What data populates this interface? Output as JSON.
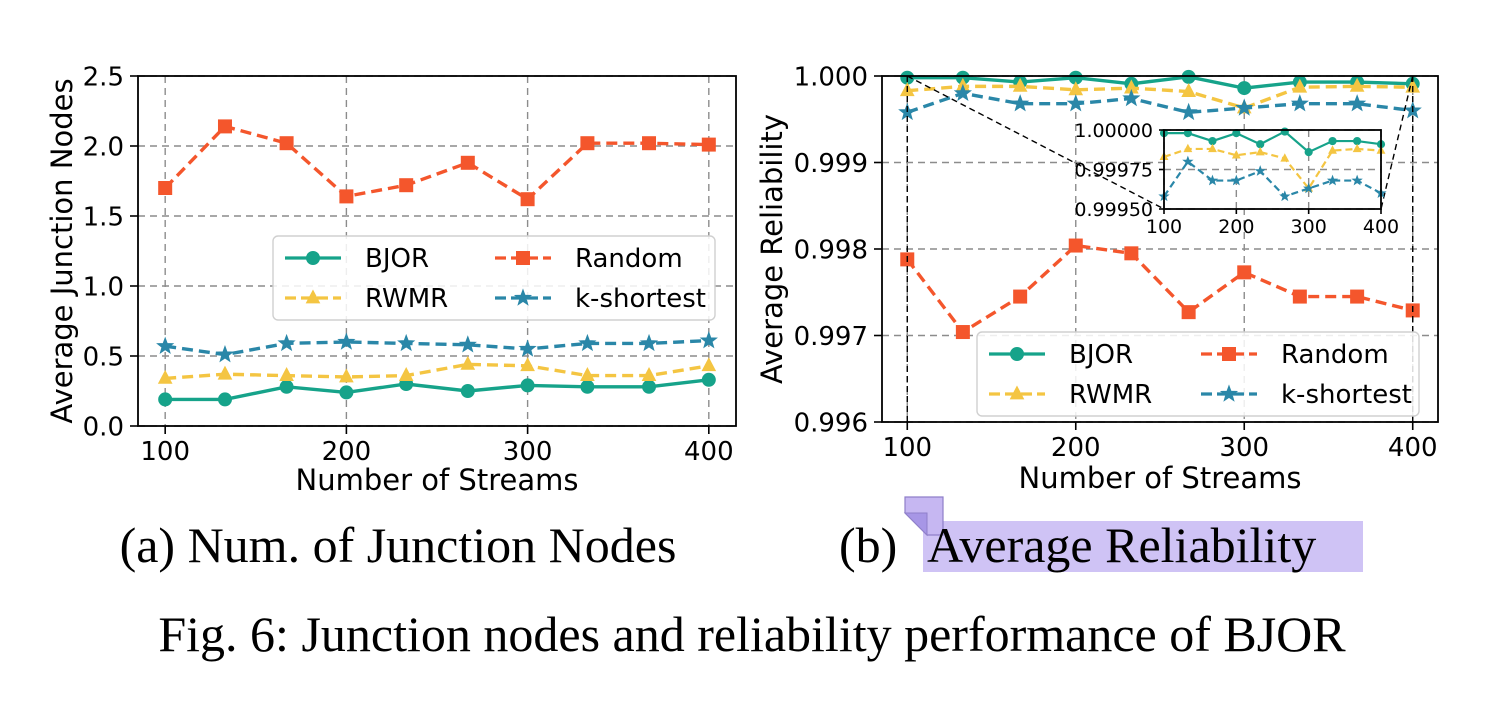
{
  "figure": {
    "caption": "Fig. 6: Junction nodes and reliability performance of BJOR",
    "colors": {
      "BJOR": "#16a38a",
      "RWMR": "#f4c542",
      "Random": "#f4562c",
      "k-shortest": "#2a87a8",
      "highlight": "#cfc3f5",
      "note": "#b8a6ef"
    }
  },
  "chart_data": [
    {
      "type": "line",
      "subcaption": "(a) Num. of Junction Nodes",
      "xlabel": "Number of Streams",
      "ylabel": "Average Junction Nodes",
      "xlim": [
        85,
        415
      ],
      "ylim": [
        0.0,
        2.5
      ],
      "xticks": [
        100,
        200,
        300,
        400
      ],
      "yticks": [
        "0.0",
        "0.5",
        "1.0",
        "1.5",
        "2.0",
        "2.5"
      ],
      "grid": true,
      "legend": {
        "position": "center-right",
        "ncol": 2
      },
      "x": [
        100,
        133,
        167,
        200,
        233,
        267,
        300,
        333,
        367,
        400
      ],
      "series": [
        {
          "name": "BJOR",
          "marker": "circle",
          "dash": false,
          "values": [
            0.19,
            0.19,
            0.28,
            0.24,
            0.3,
            0.25,
            0.29,
            0.28,
            0.28,
            0.33
          ]
        },
        {
          "name": "RWMR",
          "marker": "triangle",
          "dash": true,
          "values": [
            0.34,
            0.37,
            0.36,
            0.35,
            0.36,
            0.44,
            0.43,
            0.36,
            0.36,
            0.43
          ]
        },
        {
          "name": "Random",
          "marker": "square",
          "dash": true,
          "values": [
            1.7,
            2.14,
            2.02,
            1.64,
            1.72,
            1.88,
            1.62,
            2.02,
            2.02,
            2.01
          ]
        },
        {
          "name": "k-shortest",
          "marker": "star",
          "dash": true,
          "values": [
            0.57,
            0.51,
            0.59,
            0.6,
            0.59,
            0.58,
            0.55,
            0.59,
            0.59,
            0.61
          ]
        }
      ]
    },
    {
      "type": "line",
      "subcaption_prefix": "(b)",
      "subcaption": "Average Reliability",
      "xlabel": "Number of Streams",
      "ylabel": "Average Reliability",
      "xlim": [
        85,
        415
      ],
      "ylim": [
        0.996,
        1.0
      ],
      "xticks": [
        100,
        200,
        300,
        400
      ],
      "yticks": [
        "0.996",
        "0.997",
        "0.998",
        "0.999",
        "1.000"
      ],
      "grid": true,
      "legend": {
        "position": "lower-right",
        "ncol": 2
      },
      "x": [
        100,
        133,
        167,
        200,
        233,
        267,
        300,
        333,
        367,
        400
      ],
      "series": [
        {
          "name": "BJOR",
          "marker": "circle",
          "dash": false,
          "values": [
            0.99998,
            0.99998,
            0.99993,
            0.99998,
            0.99991,
            0.99999,
            0.99986,
            0.99993,
            0.99993,
            0.99991
          ]
        },
        {
          "name": "RWMR",
          "marker": "triangle",
          "dash": true,
          "values": [
            0.99983,
            0.99988,
            0.99988,
            0.99984,
            0.99986,
            0.99982,
            0.99963,
            0.99987,
            0.99988,
            0.99987
          ]
        },
        {
          "name": "Random",
          "marker": "square",
          "dash": true,
          "values": [
            0.99788,
            0.99704,
            0.99745,
            0.99804,
            0.99795,
            0.99727,
            0.99773,
            0.99745,
            0.99745,
            0.99729
          ]
        },
        {
          "name": "k-shortest",
          "marker": "star",
          "dash": true,
          "values": [
            0.99958,
            0.9998,
            0.99968,
            0.99968,
            0.99974,
            0.99958,
            0.99963,
            0.99968,
            0.99968,
            0.9996
          ]
        }
      ],
      "inset": {
        "xlim": [
          100,
          400
        ],
        "ylim": [
          0.9995,
          1.0
        ],
        "xticks": [
          100,
          200,
          300,
          400
        ],
        "yticks": [
          "0.99950",
          "0.99975",
          "1.00000"
        ],
        "series": [
          "BJOR",
          "RWMR",
          "k-shortest"
        ]
      }
    }
  ]
}
